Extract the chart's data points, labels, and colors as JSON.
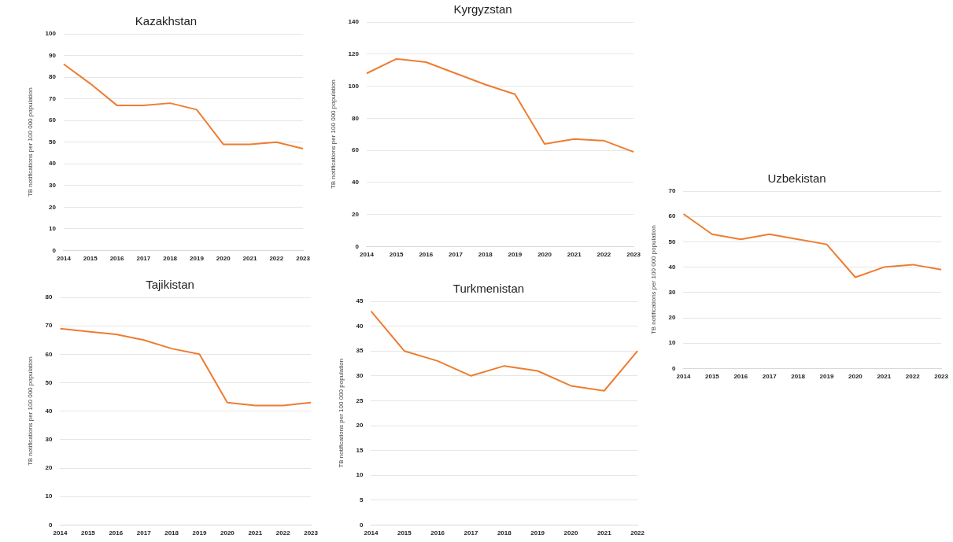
{
  "chart_data": [
    {
      "type": "line",
      "title": "Kazakhstan",
      "ylabel": "TB notifications per 100 000 population",
      "categories": [
        "2014",
        "2015",
        "2016",
        "2017",
        "2018",
        "2019",
        "2020",
        "2021",
        "2022",
        "2023"
      ],
      "series": [
        {
          "color": "#ed7d31",
          "values": [
            86,
            77,
            67,
            67,
            68,
            65,
            49,
            49,
            50,
            47
          ]
        }
      ],
      "ylim": [
        0,
        100
      ],
      "yticks": [
        0,
        10,
        20,
        30,
        40,
        50,
        60,
        70,
        80,
        90,
        100
      ],
      "grid": "y"
    },
    {
      "type": "line",
      "title": "Kyrgyzstan",
      "ylabel": "TB notifications per 100 000 population",
      "categories": [
        "2014",
        "2015",
        "2016",
        "2017",
        "2018",
        "2019",
        "2020",
        "2021",
        "2022",
        "2023"
      ],
      "series": [
        {
          "color": "#ed7d31",
          "values": [
            108,
            117,
            115,
            108,
            101,
            95,
            64,
            67,
            66,
            59
          ]
        }
      ],
      "ylim": [
        0,
        140
      ],
      "yticks": [
        0,
        20,
        40,
        60,
        80,
        100,
        120,
        140
      ],
      "grid": "y"
    },
    {
      "type": "line",
      "title": "Uzbekistan",
      "ylabel": "TB notifications per 100 000 population",
      "categories": [
        "2014",
        "2015",
        "2016",
        "2017",
        "2018",
        "2019",
        "2020",
        "2021",
        "2022",
        "2023"
      ],
      "series": [
        {
          "color": "#ed7d31",
          "values": [
            61,
            53,
            51,
            53,
            51,
            49,
            36,
            40,
            41,
            39
          ]
        }
      ],
      "ylim": [
        0,
        70
      ],
      "yticks": [
        0,
        10,
        20,
        30,
        40,
        50,
        60,
        70
      ],
      "grid": "y"
    },
    {
      "type": "line",
      "title": "Tajikistan",
      "ylabel": "TB notifications per 100 000 population",
      "categories": [
        "2014",
        "2015",
        "2016",
        "2017",
        "2018",
        "2019",
        "2020",
        "2021",
        "2022",
        "2023"
      ],
      "series": [
        {
          "color": "#ed7d31",
          "values": [
            69,
            68,
            67,
            65,
            62,
            60,
            43,
            42,
            42,
            43
          ]
        }
      ],
      "ylim": [
        0,
        80
      ],
      "yticks": [
        0,
        10,
        20,
        30,
        40,
        50,
        60,
        70,
        80
      ],
      "grid": "y"
    },
    {
      "type": "line",
      "title": "Turkmenistan",
      "ylabel": "TB notifications per 100 000 population",
      "categories": [
        "2014",
        "2015",
        "2016",
        "2017",
        "2018",
        "2019",
        "2020",
        "2021",
        "2022"
      ],
      "series": [
        {
          "color": "#ed7d31",
          "values": [
            43,
            35,
            33,
            30,
            32,
            31,
            28,
            27,
            35
          ]
        }
      ],
      "ylim": [
        0,
        45
      ],
      "yticks": [
        0,
        5,
        10,
        15,
        20,
        25,
        30,
        35,
        40,
        45
      ],
      "grid": "y"
    }
  ]
}
